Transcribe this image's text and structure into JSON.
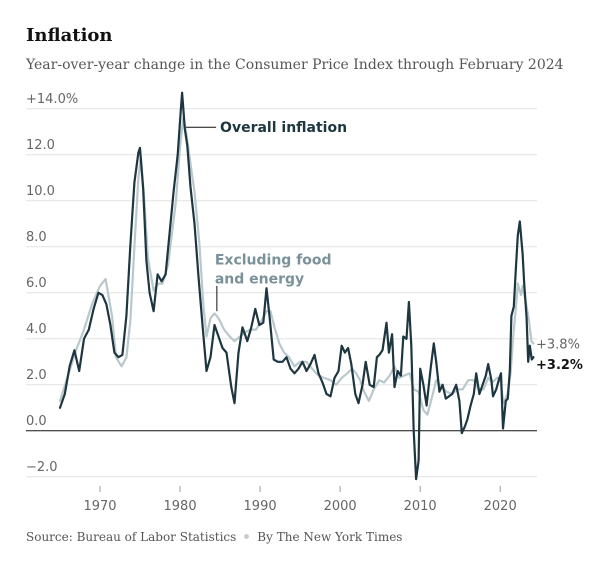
{
  "title": "Inflation",
  "subtitle": "Year-over-year change in the Consumer Price Index through February 2024",
  "footer": {
    "source": "Source: Bureau of Labor Statistics",
    "byline": "By The New York Times"
  },
  "chart_data": {
    "type": "line",
    "title": "Inflation",
    "subtitle": "Year-over-year change in the Consumer Price Index through February 2024",
    "xlim": [
      1964.5,
      2024.6
    ],
    "ylim": [
      -2.4,
      14.6
    ],
    "grid": true,
    "y_ticks": [
      {
        "value": 14,
        "label": "+14.0%"
      },
      {
        "value": 12,
        "label": "12.0"
      },
      {
        "value": 10,
        "label": "10.0"
      },
      {
        "value": 8,
        "label": "8.0"
      },
      {
        "value": 6,
        "label": "6.0"
      },
      {
        "value": 4,
        "label": "4.0"
      },
      {
        "value": 2,
        "label": "2.0"
      },
      {
        "value": 0,
        "label": "0.0"
      },
      {
        "value": -2,
        "label": "−2.0"
      }
    ],
    "x_ticks": [
      {
        "value": 1970,
        "label": "1970"
      },
      {
        "value": 1980,
        "label": "1980"
      },
      {
        "value": 1990,
        "label": "1990"
      },
      {
        "value": 2000,
        "label": "2000"
      },
      {
        "value": 2010,
        "label": "2010"
      },
      {
        "value": 2020,
        "label": "2020"
      }
    ],
    "series": [
      {
        "name": "Excluding food and energy",
        "label_lines": [
          "Excluding food",
          "and energy"
        ],
        "color": "#b8c8cc",
        "label_color": "#7a9199",
        "end_label": "+3.8%",
        "points": [
          [
            1965.0,
            1.3
          ],
          [
            1966.0,
            2.4
          ],
          [
            1967.0,
            3.5
          ],
          [
            1968.0,
            4.4
          ],
          [
            1969.0,
            5.5
          ],
          [
            1970.0,
            6.3
          ],
          [
            1970.7,
            6.6
          ],
          [
            1971.5,
            5.0
          ],
          [
            1972.0,
            3.2
          ],
          [
            1972.7,
            2.8
          ],
          [
            1973.3,
            3.2
          ],
          [
            1973.8,
            4.8
          ],
          [
            1974.3,
            8.0
          ],
          [
            1974.8,
            11.0
          ],
          [
            1975.1,
            11.9
          ],
          [
            1975.5,
            10.2
          ],
          [
            1976.0,
            7.5
          ],
          [
            1976.7,
            6.1
          ],
          [
            1977.3,
            6.4
          ],
          [
            1977.8,
            6.4
          ],
          [
            1978.5,
            7.2
          ],
          [
            1979.0,
            8.6
          ],
          [
            1979.5,
            10.0
          ],
          [
            1980.0,
            12.4
          ],
          [
            1980.4,
            13.6
          ],
          [
            1980.8,
            12.9
          ],
          [
            1981.3,
            11.6
          ],
          [
            1981.8,
            10.4
          ],
          [
            1982.4,
            8.2
          ],
          [
            1982.9,
            5.5
          ],
          [
            1983.3,
            4.1
          ],
          [
            1983.8,
            4.9
          ],
          [
            1984.3,
            5.1
          ],
          [
            1984.8,
            4.9
          ],
          [
            1985.5,
            4.4
          ],
          [
            1986.2,
            4.1
          ],
          [
            1986.8,
            3.9
          ],
          [
            1987.5,
            4.1
          ],
          [
            1988.2,
            4.3
          ],
          [
            1988.8,
            4.4
          ],
          [
            1989.5,
            4.4
          ],
          [
            1990.2,
            4.8
          ],
          [
            1990.8,
            5.2
          ],
          [
            1991.3,
            5.2
          ],
          [
            1991.8,
            4.5
          ],
          [
            1992.4,
            3.8
          ],
          [
            1993.0,
            3.4
          ],
          [
            1993.6,
            3.2
          ],
          [
            1994.3,
            2.8
          ],
          [
            1995.0,
            3.0
          ],
          [
            1995.8,
            3.0
          ],
          [
            1996.5,
            2.7
          ],
          [
            1997.3,
            2.4
          ],
          [
            1998.0,
            2.3
          ],
          [
            1998.8,
            2.2
          ],
          [
            1999.5,
            2.0
          ],
          [
            2000.2,
            2.3
          ],
          [
            2000.9,
            2.5
          ],
          [
            2001.5,
            2.7
          ],
          [
            2002.0,
            2.5
          ],
          [
            2002.5,
            2.2
          ],
          [
            2003.0,
            1.7
          ],
          [
            2003.6,
            1.3
          ],
          [
            2004.2,
            1.8
          ],
          [
            2004.9,
            2.2
          ],
          [
            2005.5,
            2.1
          ],
          [
            2006.2,
            2.4
          ],
          [
            2006.8,
            2.8
          ],
          [
            2007.4,
            2.3
          ],
          [
            2008.0,
            2.4
          ],
          [
            2008.7,
            2.5
          ],
          [
            2009.2,
            1.8
          ],
          [
            2009.8,
            1.7
          ],
          [
            2010.4,
            0.9
          ],
          [
            2010.9,
            0.7
          ],
          [
            2011.5,
            1.5
          ],
          [
            2012.0,
            2.2
          ],
          [
            2012.7,
            1.9
          ],
          [
            2013.3,
            1.7
          ],
          [
            2014.0,
            1.6
          ],
          [
            2014.7,
            1.8
          ],
          [
            2015.3,
            1.8
          ],
          [
            2016.0,
            2.2
          ],
          [
            2016.7,
            2.2
          ],
          [
            2017.3,
            1.8
          ],
          [
            2017.9,
            1.8
          ],
          [
            2018.5,
            2.3
          ],
          [
            2019.0,
            2.1
          ],
          [
            2019.6,
            2.3
          ],
          [
            2020.0,
            2.3
          ],
          [
            2020.4,
            1.2
          ],
          [
            2020.9,
            1.6
          ],
          [
            2021.3,
            2.5
          ],
          [
            2021.6,
            4.0
          ],
          [
            2022.0,
            5.5
          ],
          [
            2022.2,
            6.4
          ],
          [
            2022.6,
            5.9
          ],
          [
            2022.8,
            6.3
          ],
          [
            2023.2,
            5.6
          ],
          [
            2023.6,
            4.8
          ],
          [
            2023.9,
            3.9
          ],
          [
            2024.15,
            3.8
          ]
        ]
      },
      {
        "name": "Overall inflation",
        "label_lines": [
          "Overall inflation"
        ],
        "color": "#1d3640",
        "label_color": "#1d3640",
        "end_label": "+3.2%",
        "points": [
          [
            1965.0,
            1.0
          ],
          [
            1965.6,
            1.6
          ],
          [
            1966.2,
            2.8
          ],
          [
            1966.8,
            3.5
          ],
          [
            1967.4,
            2.6
          ],
          [
            1968.0,
            4.0
          ],
          [
            1968.6,
            4.4
          ],
          [
            1969.2,
            5.3
          ],
          [
            1969.8,
            6.0
          ],
          [
            1970.3,
            5.9
          ],
          [
            1970.8,
            5.5
          ],
          [
            1971.3,
            4.6
          ],
          [
            1971.8,
            3.4
          ],
          [
            1972.3,
            3.2
          ],
          [
            1972.8,
            3.3
          ],
          [
            1973.3,
            5.0
          ],
          [
            1973.8,
            8.1
          ],
          [
            1974.3,
            10.8
          ],
          [
            1974.8,
            12.1
          ],
          [
            1975.0,
            12.3
          ],
          [
            1975.4,
            10.5
          ],
          [
            1975.8,
            7.4
          ],
          [
            1976.2,
            6.0
          ],
          [
            1976.7,
            5.2
          ],
          [
            1977.2,
            6.8
          ],
          [
            1977.7,
            6.5
          ],
          [
            1978.2,
            6.8
          ],
          [
            1978.7,
            8.6
          ],
          [
            1979.2,
            10.4
          ],
          [
            1979.7,
            12.0
          ],
          [
            1980.1,
            14.0
          ],
          [
            1980.25,
            14.7
          ],
          [
            1980.6,
            13.1
          ],
          [
            1980.9,
            12.4
          ],
          [
            1981.3,
            10.6
          ],
          [
            1981.8,
            9.0
          ],
          [
            1982.3,
            6.7
          ],
          [
            1982.8,
            4.6
          ],
          [
            1983.3,
            2.6
          ],
          [
            1983.8,
            3.2
          ],
          [
            1984.3,
            4.6
          ],
          [
            1984.8,
            4.1
          ],
          [
            1985.3,
            3.6
          ],
          [
            1985.8,
            3.4
          ],
          [
            1986.4,
            1.9
          ],
          [
            1986.8,
            1.2
          ],
          [
            1987.3,
            3.4
          ],
          [
            1987.8,
            4.5
          ],
          [
            1988.4,
            3.9
          ],
          [
            1988.9,
            4.5
          ],
          [
            1989.4,
            5.3
          ],
          [
            1989.9,
            4.6
          ],
          [
            1990.4,
            4.7
          ],
          [
            1990.8,
            6.2
          ],
          [
            1991.2,
            4.9
          ],
          [
            1991.7,
            3.1
          ],
          [
            1992.2,
            3.0
          ],
          [
            1992.8,
            3.0
          ],
          [
            1993.3,
            3.2
          ],
          [
            1993.8,
            2.7
          ],
          [
            1994.3,
            2.5
          ],
          [
            1994.8,
            2.7
          ],
          [
            1995.3,
            3.0
          ],
          [
            1995.8,
            2.6
          ],
          [
            1996.3,
            2.9
          ],
          [
            1996.8,
            3.3
          ],
          [
            1997.3,
            2.5
          ],
          [
            1997.8,
            2.1
          ],
          [
            1998.3,
            1.6
          ],
          [
            1998.8,
            1.5
          ],
          [
            1999.3,
            2.3
          ],
          [
            1999.8,
            2.6
          ],
          [
            2000.2,
            3.7
          ],
          [
            2000.6,
            3.4
          ],
          [
            2001.0,
            3.6
          ],
          [
            2001.4,
            2.9
          ],
          [
            2001.9,
            1.6
          ],
          [
            2002.3,
            1.2
          ],
          [
            2002.8,
            2.0
          ],
          [
            2003.2,
            3.0
          ],
          [
            2003.7,
            2.0
          ],
          [
            2004.2,
            1.9
          ],
          [
            2004.6,
            3.2
          ],
          [
            2004.9,
            3.3
          ],
          [
            2005.3,
            3.5
          ],
          [
            2005.8,
            4.7
          ],
          [
            2006.1,
            3.4
          ],
          [
            2006.5,
            4.2
          ],
          [
            2006.8,
            1.9
          ],
          [
            2007.2,
            2.6
          ],
          [
            2007.6,
            2.4
          ],
          [
            2007.9,
            4.1
          ],
          [
            2008.3,
            4.0
          ],
          [
            2008.6,
            5.6
          ],
          [
            2008.9,
            3.7
          ],
          [
            2009.2,
            0.0
          ],
          [
            2009.5,
            -2.1
          ],
          [
            2009.8,
            -1.3
          ],
          [
            2010.0,
            2.7
          ],
          [
            2010.4,
            2.0
          ],
          [
            2010.8,
            1.1
          ],
          [
            2011.3,
            2.7
          ],
          [
            2011.7,
            3.8
          ],
          [
            2012.0,
            3.0
          ],
          [
            2012.4,
            1.7
          ],
          [
            2012.8,
            2.0
          ],
          [
            2013.2,
            1.4
          ],
          [
            2013.6,
            1.5
          ],
          [
            2014.0,
            1.6
          ],
          [
            2014.5,
            2.0
          ],
          [
            2014.9,
            1.3
          ],
          [
            2015.2,
            -0.1
          ],
          [
            2015.6,
            0.2
          ],
          [
            2015.9,
            0.5
          ],
          [
            2016.3,
            1.1
          ],
          [
            2016.7,
            1.6
          ],
          [
            2017.0,
            2.5
          ],
          [
            2017.4,
            1.6
          ],
          [
            2017.8,
            2.0
          ],
          [
            2018.2,
            2.4
          ],
          [
            2018.5,
            2.9
          ],
          [
            2018.9,
            2.2
          ],
          [
            2019.1,
            1.5
          ],
          [
            2019.5,
            1.8
          ],
          [
            2019.9,
            2.3
          ],
          [
            2020.1,
            2.5
          ],
          [
            2020.35,
            0.1
          ],
          [
            2020.7,
            1.3
          ],
          [
            2020.95,
            1.4
          ],
          [
            2021.2,
            2.6
          ],
          [
            2021.4,
            5.0
          ],
          [
            2021.7,
            5.4
          ],
          [
            2021.95,
            7.0
          ],
          [
            2022.2,
            8.5
          ],
          [
            2022.45,
            9.1
          ],
          [
            2022.8,
            7.7
          ],
          [
            2023.0,
            6.4
          ],
          [
            2023.3,
            4.9
          ],
          [
            2023.5,
            3.0
          ],
          [
            2023.7,
            3.7
          ],
          [
            2023.95,
            3.1
          ],
          [
            2024.15,
            3.2
          ]
        ]
      }
    ]
  }
}
